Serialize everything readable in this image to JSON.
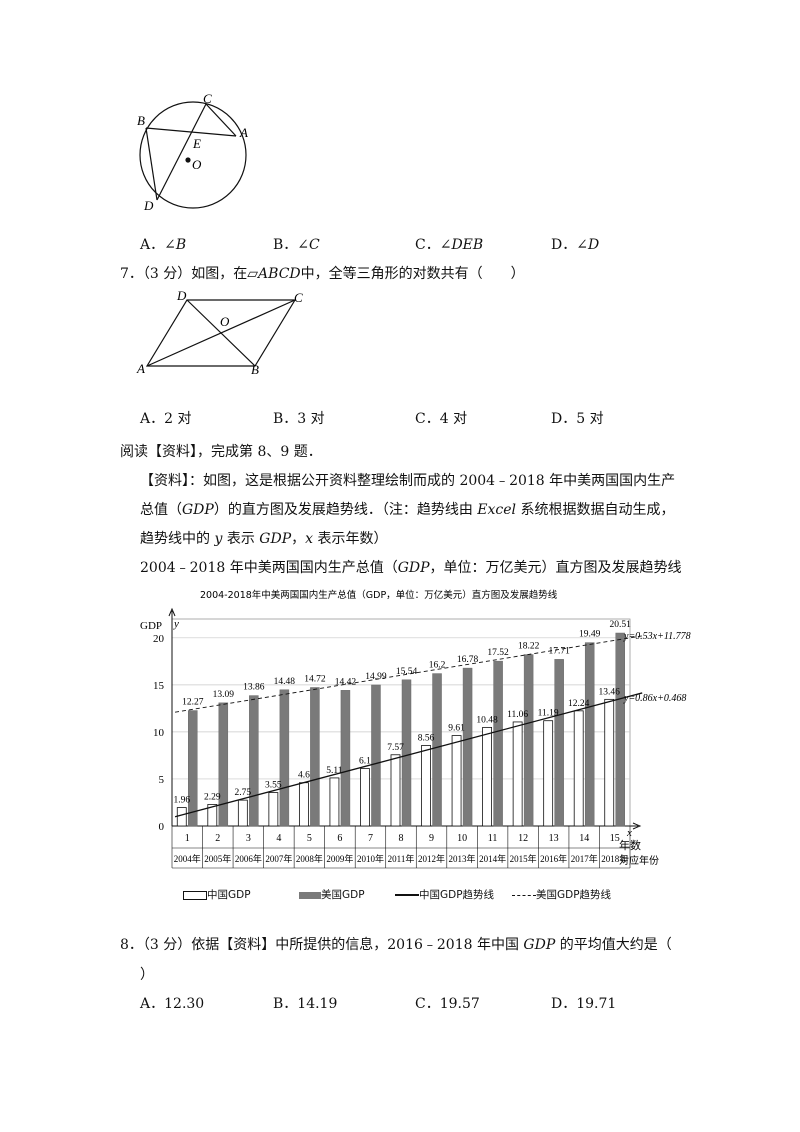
{
  "q6": {
    "figure_labels": {
      "A": "A",
      "B": "B",
      "C": "C",
      "D": "D",
      "E": "E",
      "O": "O"
    },
    "options": [
      {
        "letter": "A．",
        "text": "∠B"
      },
      {
        "letter": "B．",
        "text": "∠C"
      },
      {
        "letter": "C．",
        "text": "∠DEB"
      },
      {
        "letter": "D．",
        "text": "∠D"
      }
    ]
  },
  "q7": {
    "stem_prefix": "7．（3 分）如图，在▱",
    "stem_italic": "ABCD",
    "stem_suffix": "中，全等三角形的对数共有（　　）",
    "figure_labels": {
      "A": "A",
      "B": "B",
      "C": "C",
      "D": "D",
      "O": "O"
    },
    "options": [
      {
        "letter": "A．",
        "text": "2 对"
      },
      {
        "letter": "B．",
        "text": "3 对"
      },
      {
        "letter": "C．",
        "text": "4 对"
      },
      {
        "letter": "D．",
        "text": "5 对"
      }
    ]
  },
  "reading": {
    "intro": "阅读【资料】，完成第 8、9 题．",
    "line1": "【资料】：如图，这是根据公开资料整理绘制而成的 2004﹣2018 年中美两国国内生产",
    "line2_a": "总值（",
    "line2_gdp": "GDP",
    "line2_b": "）的直方图及发展趋势线．（注：趋势线由 ",
    "line2_excel": "Excel",
    "line2_c": " 系统根据数据自动生成，",
    "line3_a": "趋势线中的 ",
    "line3_y": "y",
    "line3_b": " 表示 ",
    "line3_gdp": "GDP",
    "line3_c": "，",
    "line3_x": "x",
    "line3_d": " 表示年数）",
    "caption_a": "2004﹣2018 年中美两国国内生产总值（",
    "caption_gdp": "GDP",
    "caption_b": "，单位：万亿美元）直方图及发展趋势线"
  },
  "chart_data": {
    "type": "bar",
    "title": "2004-2018年中美两国国内生产总值（GDP，单位：万亿美元）直方图及发展趋势线",
    "ylabel": "GDP",
    "y_axis_var": "y",
    "x_axis_var": "x",
    "xlabel_line1": "年数",
    "xlabel_line2": "对应年份",
    "ylim": [
      0,
      22
    ],
    "yticks": [
      "0",
      "5",
      "10",
      "15",
      "20"
    ],
    "categories": [
      "1",
      "2",
      "3",
      "4",
      "5",
      "6",
      "7",
      "8",
      "9",
      "10",
      "11",
      "12",
      "13",
      "14",
      "15"
    ],
    "years": [
      "2004年",
      "2005年",
      "2006年",
      "2007年",
      "2008年",
      "2009年",
      "2010年",
      "2011年",
      "2012年",
      "2013年",
      "2014年",
      "2015年",
      "2016年",
      "2017年",
      "2018年"
    ],
    "series": [
      {
        "name": "中国GDP",
        "values": [
          1.96,
          2.29,
          2.75,
          3.55,
          4.6,
          5.11,
          6.1,
          7.57,
          8.56,
          9.61,
          10.48,
          11.06,
          11.19,
          12.24,
          13.46
        ],
        "labels": [
          "1.96",
          "2.29",
          "2.75",
          "3.55",
          "4.6",
          "5.11",
          "6.1",
          "7.57",
          "8.56",
          "9.61",
          "10.48",
          "11.06",
          "11.19",
          "12.24",
          "13.46"
        ],
        "color": "#ffffff"
      },
      {
        "name": "美国GDP",
        "values": [
          12.27,
          13.09,
          13.86,
          14.48,
          14.72,
          14.42,
          14.99,
          15.54,
          16.2,
          16.78,
          17.52,
          18.22,
          17.71,
          19.49,
          20.51
        ],
        "labels": [
          "12.27",
          "13.09",
          "13.86",
          "14.48",
          "14.72",
          "14.42",
          "14.99",
          "15.54",
          "16.2",
          "16.78",
          "17.52",
          "18.22",
          "17.71",
          "19.49",
          "20.51"
        ],
        "color": "#7a7a7a"
      }
    ],
    "trendlines": [
      {
        "name": "中国GDP趋势线",
        "slope": 0.86,
        "intercept": 0.468,
        "equation": "y=0.86x+0.468",
        "style": "solid"
      },
      {
        "name": "美国GDP趋势线",
        "slope": 0.53,
        "intercept": 11.778,
        "equation": "y=0.53x+11.778",
        "style": "dashed"
      }
    ],
    "legend": [
      "中国GDP",
      "美国GDP",
      "中国GDP趋势线",
      "美国GDP趋势线"
    ],
    "legend_position": "bottom"
  },
  "q8": {
    "stem_a": "8．（3 分）依据【资料】中所提供的信息，2016﹣2018 年中国 ",
    "stem_gdp": "GDP",
    "stem_b": " 的平均值大约是（",
    "stem_c": "）",
    "options": [
      {
        "letter": "A．",
        "text": "12.30"
      },
      {
        "letter": "B．",
        "text": "14.19"
      },
      {
        "letter": "C．",
        "text": "19.57"
      },
      {
        "letter": "D．",
        "text": "19.71"
      }
    ]
  }
}
